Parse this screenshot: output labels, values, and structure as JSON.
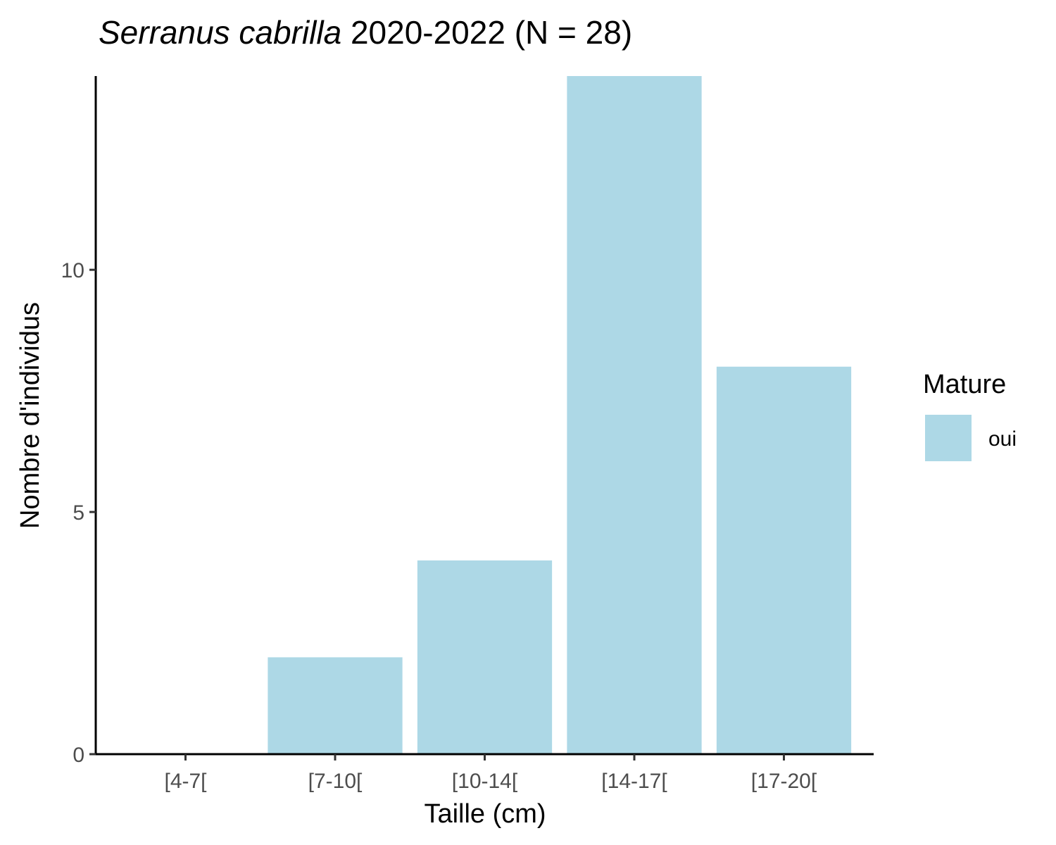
{
  "chart_data": {
    "type": "bar",
    "title": {
      "species": "Serranus cabrilla",
      "rest": " 2020-2022 (N = 28)"
    },
    "xlabel": "Taille (cm)",
    "ylabel": "Nombre d'individus",
    "categories": [
      "[4-7[",
      "[7-10[",
      "[10-14[",
      "[14-17[",
      "[17-20["
    ],
    "series": [
      {
        "name": "oui",
        "values": [
          0,
          2,
          4,
          14,
          8
        ],
        "color": "#ADD8E6"
      }
    ],
    "ylim": [
      0,
      14
    ],
    "yticks": [
      0,
      5,
      10
    ],
    "ytick_labels": [
      "0",
      "5",
      "10"
    ],
    "grid": false,
    "legend": {
      "title": "Mature",
      "position": "right",
      "items": [
        {
          "label": "oui",
          "color": "#ADD8E6"
        }
      ]
    }
  }
}
